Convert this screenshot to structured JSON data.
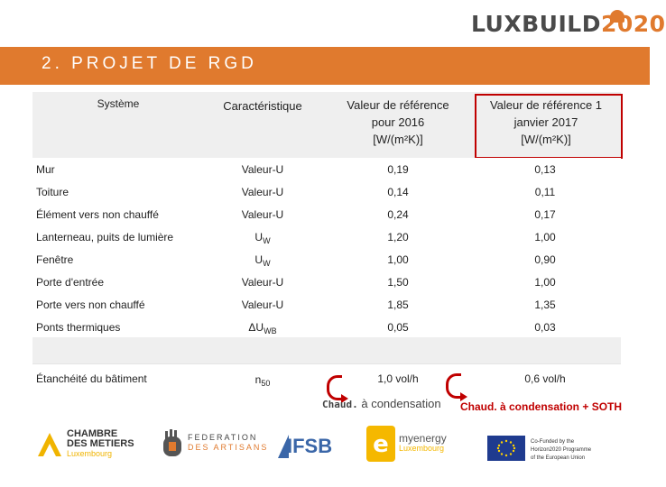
{
  "brand": {
    "name": "LUXBUILD",
    "year": "2020"
  },
  "banner": {
    "title": "2. PROJET DE RGD"
  },
  "table": {
    "headers": {
      "systeme": "Système",
      "caracteristique": "Caractéristique",
      "ref2016": [
        "Valeur de référence",
        "pour 2016",
        "[W/(m²K)]"
      ],
      "ref2017": [
        "Valeur de référence 1",
        "janvier 2017",
        "[W/(m²K)]"
      ]
    },
    "rows": [
      {
        "systeme": "Mur",
        "carac": "Valeur-U",
        "v2016": "0,19",
        "v2017": "0,13"
      },
      {
        "systeme": "Toiture",
        "carac": "Valeur-U",
        "v2016": "0,14",
        "v2017": "0,11"
      },
      {
        "systeme": "Élément vers non chauffé",
        "carac": "Valeur-U",
        "v2016": "0,24",
        "v2017": "0,17"
      },
      {
        "systeme": "Lanterneau, puits de lumière",
        "carac": "U",
        "sub": "W",
        "v2016": "1,20",
        "v2017": "1,00"
      },
      {
        "systeme": "Fenêtre",
        "carac": "U",
        "sub": "W",
        "v2016": "1,00",
        "v2017": "0,90"
      },
      {
        "systeme": "Porte d'entrée",
        "carac": "Valeur-U",
        "v2016": "1,50",
        "v2017": "1,00"
      },
      {
        "systeme": "Porte vers non chauffé",
        "carac": "Valeur-U",
        "v2016": "1,85",
        "v2017": "1,35"
      },
      {
        "systeme": "Ponts thermiques",
        "carac": "ΔU",
        "sub": "WB",
        "v2016": "0,05",
        "v2017": "0,03"
      }
    ],
    "etancheite": {
      "systeme": "Étanchéité du bâtiment",
      "carac": "n",
      "sub": "50",
      "v2016": "1,0 vol/h",
      "v2017": "0,6 vol/h"
    }
  },
  "notes": {
    "left_bold": "Chaud.",
    "left_rest": " à condensation",
    "right": "Chaud. à condensation + SOTH"
  },
  "footer": {
    "cdm": [
      "CHAMBRE",
      "DES METIERS",
      "Luxembourg"
    ],
    "fda": [
      "FEDERATION",
      "DES ARTISANS"
    ],
    "ifsb": "IFSB",
    "myenergy": [
      "myenergy",
      "Luxembourg"
    ],
    "eu": [
      "Co-Funded by the",
      "Horizon2020 Programme",
      "of the European Union"
    ]
  },
  "colors": {
    "accent": "#e07a2e",
    "highlight": "#c00000"
  }
}
